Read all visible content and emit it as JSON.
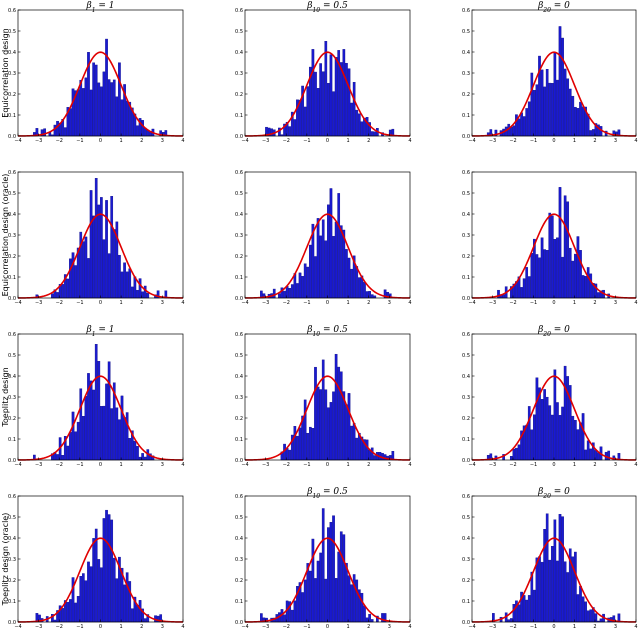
{
  "chart_data": {
    "type": "bar",
    "layout": "4x3 grid of histograms with overlaid standard normal density curve",
    "xlim": [
      -4,
      4
    ],
    "ylim": [
      0,
      0.6
    ],
    "x_ticks": [
      "−4",
      "−3",
      "−2",
      "−1",
      "0",
      "1",
      "2",
      "3",
      "4"
    ],
    "y_ticks": [
      "0.0",
      "0.1",
      "0.2",
      "0.3",
      "0.4",
      "0.5",
      "0.6"
    ],
    "overlay_curve": "standard normal density",
    "colors": {
      "bars": "#1a1ad0",
      "bar_edges": "#10108a",
      "curve": "#e00000"
    },
    "row_labels": [
      "Equicorrelation design",
      "Equicorrelation design (oracle)",
      "Toeplitz design",
      "Toeplitz design (oracle)"
    ],
    "panels": [
      {
        "row": 0,
        "col": 0,
        "title_html": "β<tspan baseline-shift=\"sub\" font-size=\"6\">1</tspan> = 1",
        "seed": 11
      },
      {
        "row": 0,
        "col": 1,
        "title_html": "β<tspan baseline-shift=\"sub\" font-size=\"6\">10</tspan> = 0.5",
        "seed": 23
      },
      {
        "row": 0,
        "col": 2,
        "title_html": "β<tspan baseline-shift=\"sub\" font-size=\"6\">20</tspan> = 0",
        "seed": 37
      },
      {
        "row": 1,
        "col": 0,
        "title_html": "",
        "seed": 41
      },
      {
        "row": 1,
        "col": 1,
        "title_html": "",
        "seed": 53
      },
      {
        "row": 1,
        "col": 2,
        "title_html": "",
        "seed": 67
      },
      {
        "row": 2,
        "col": 0,
        "title_html": "β<tspan baseline-shift=\"sub\" font-size=\"6\">1</tspan> = 1",
        "seed": 71
      },
      {
        "row": 2,
        "col": 1,
        "title_html": "β<tspan baseline-shift=\"sub\" font-size=\"6\">10</tspan> = 0.5",
        "seed": 83
      },
      {
        "row": 2,
        "col": 2,
        "title_html": "β<tspan baseline-shift=\"sub\" font-size=\"6\">20</tspan> = 0",
        "seed": 97
      },
      {
        "row": 3,
        "col": 0,
        "title_html": "",
        "seed": 101
      },
      {
        "row": 3,
        "col": 1,
        "title_html": "β<tspan baseline-shift=\"sub\" font-size=\"6\">10</tspan> = 0.5",
        "seed": 113
      },
      {
        "row": 3,
        "col": 2,
        "title_html": "β<tspan baseline-shift=\"sub\" font-size=\"6\">20</tspan> = 0",
        "seed": 127
      }
    ]
  }
}
